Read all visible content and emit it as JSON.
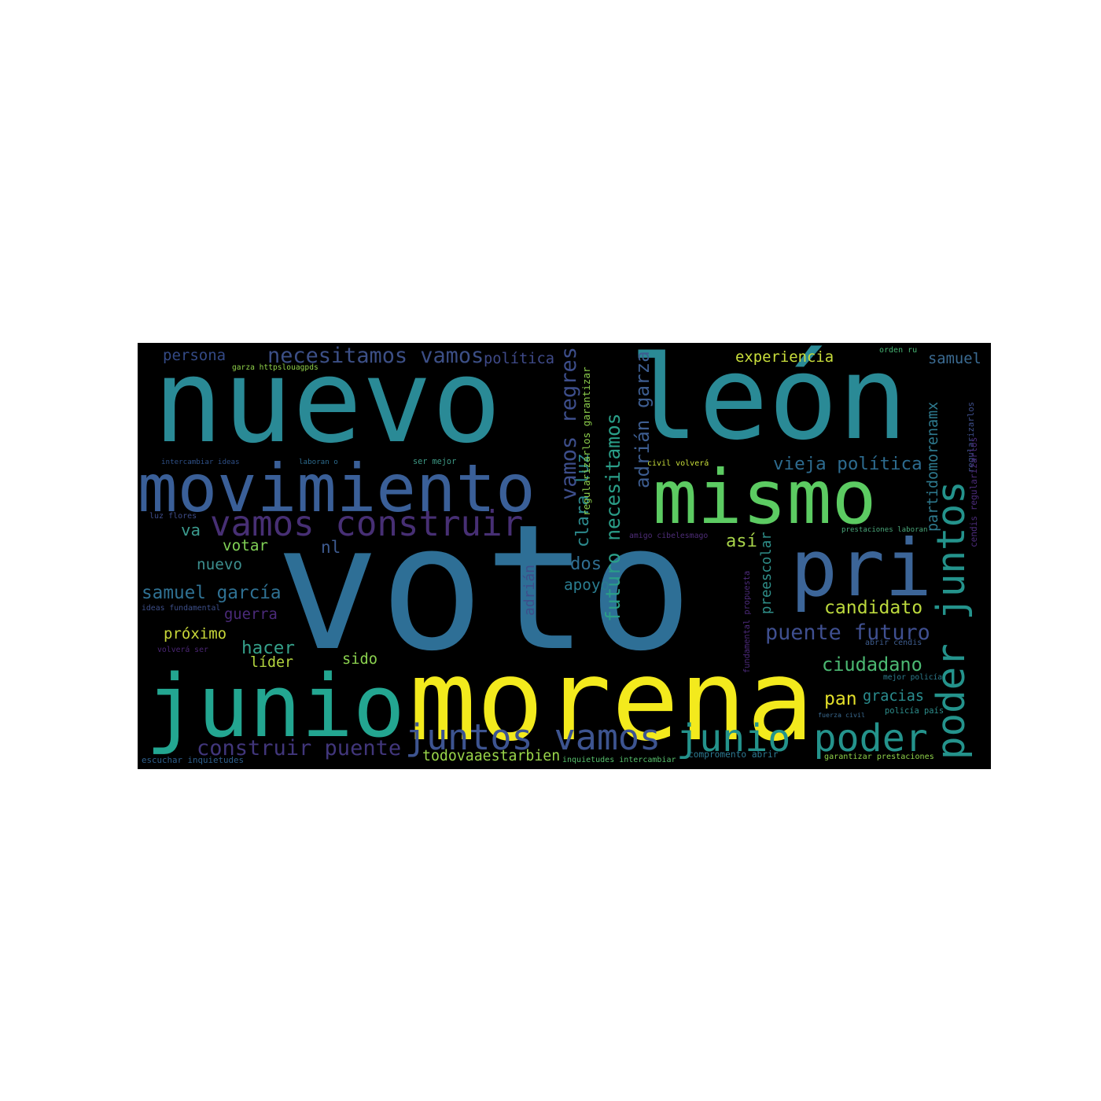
{
  "background": "#000000",
  "words": [
    {
      "text": "nuevo",
      "color": "#2a8a96"
    },
    {
      "text": "león",
      "color": "#2a8a96"
    },
    {
      "text": "voto",
      "color": "#2e6f96"
    },
    {
      "text": "morena",
      "color": "#f3ea1d"
    },
    {
      "text": "junio",
      "color": "#23a691"
    },
    {
      "text": "movimiento",
      "color": "#3a5f98"
    },
    {
      "text": "mismo",
      "color": "#5ccb62"
    },
    {
      "text": "pri",
      "color": "#3c6598"
    },
    {
      "text": "vamos construir",
      "color": "#472f74"
    },
    {
      "text": "necesitamos vamos",
      "color": "#3c4f86"
    },
    {
      "text": "política",
      "color": "#3f4a89"
    },
    {
      "text": "juntos vamos",
      "color": "#3d5490"
    },
    {
      "text": "junio poder",
      "color": "#24938c"
    },
    {
      "text": "poder juntos",
      "color": "#24938c"
    },
    {
      "text": "samuel garcía",
      "color": "#2f7193"
    },
    {
      "text": "construir puente",
      "color": "#41367b"
    },
    {
      "text": "futuro necesitamos",
      "color": "#2a9e88"
    },
    {
      "text": "adrián garza",
      "color": "#3d5d90"
    },
    {
      "text": "clara luz",
      "color": "#2c8a8d"
    },
    {
      "text": "vamos regres",
      "color": "#3d4e8b"
    },
    {
      "text": "vieja política",
      "color": "#2d6b8f"
    },
    {
      "text": "puente futuro",
      "color": "#3f4f90"
    },
    {
      "text": "partidomorenamx",
      "color": "#2e7a8f"
    },
    {
      "text": "experiencia",
      "color": "#c9de3b"
    },
    {
      "text": "samuel",
      "color": "#3b6b92"
    },
    {
      "text": "persona",
      "color": "#344a86"
    },
    {
      "text": "candidato",
      "color": "#bcd93d"
    },
    {
      "text": "ciudadano",
      "color": "#4bb872"
    },
    {
      "text": "todovaaestarbien",
      "color": "#9ad64a"
    },
    {
      "text": "preescolar",
      "color": "#2f8f8a"
    },
    {
      "text": "así",
      "color": "#a8d44a"
    },
    {
      "text": "adrián",
      "color": "#3e4e8a"
    },
    {
      "text": "apoyo",
      "color": "#2a7d90"
    },
    {
      "text": "dos",
      "color": "#2f6d90"
    },
    {
      "text": "votar",
      "color": "#7fcf55"
    },
    {
      "text": "nuevo",
      "color": "#3c8e8e"
    },
    {
      "text": "nl",
      "color": "#3e5b90"
    },
    {
      "text": "va",
      "color": "#3b9a8d"
    },
    {
      "text": "guerra",
      "color": "#4b2a7a"
    },
    {
      "text": "próximo",
      "color": "#c7d638"
    },
    {
      "text": "hacer",
      "color": "#35a08a"
    },
    {
      "text": "líder",
      "color": "#b4d63f"
    },
    {
      "text": "sido",
      "color": "#8bd24f"
    },
    {
      "text": "pan",
      "color": "#e3df2a"
    },
    {
      "text": "gracias",
      "color": "#2a8d8f"
    },
    {
      "text": "compromento abrir",
      "color": "#2d7a92"
    },
    {
      "text": "garza httpslouagpds",
      "color": "#8fd04a"
    },
    {
      "text": "intercambiar ideas",
      "color": "#2e4f86"
    },
    {
      "text": "laboran o",
      "color": "#2c6a8c"
    },
    {
      "text": "ser mejor",
      "color": "#3e9a86"
    },
    {
      "text": "civil volverá",
      "color": "#c8de3a"
    },
    {
      "text": "orden ru",
      "color": "#46b573"
    },
    {
      "text": "luz flores",
      "color": "#3e4c88"
    },
    {
      "text": "amigo cibelesmago",
      "color": "#4e2d78"
    },
    {
      "text": "prestaciones laboran",
      "color": "#4aa87b"
    },
    {
      "text": "ideas fundamental",
      "color": "#3d4f89"
    },
    {
      "text": "volverá ser",
      "color": "#4a2674"
    },
    {
      "text": "regularizarlos garantizar",
      "color": "#8ccd4c"
    },
    {
      "text": "fundamental propuesta",
      "color": "#4c2a7a"
    },
    {
      "text": "abrir cendis",
      "color": "#3e5d8e"
    },
    {
      "text": "mejor policía",
      "color": "#2d7c8e"
    },
    {
      "text": "fuerza civil",
      "color": "#3a6a90"
    },
    {
      "text": "policía país",
      "color": "#2d8d8b"
    },
    {
      "text": "escuchar inquietudes",
      "color": "#2e5f8c"
    },
    {
      "text": "inquietudes intercambiar",
      "color": "#56bf6c"
    },
    {
      "text": "garantizar prestaciones",
      "color": "#8fd24a"
    },
    {
      "text": "regularizarlos",
      "color": "#3e4e8a"
    },
    {
      "text": "cendis regularizarlos",
      "color": "#4b2b79"
    }
  ]
}
